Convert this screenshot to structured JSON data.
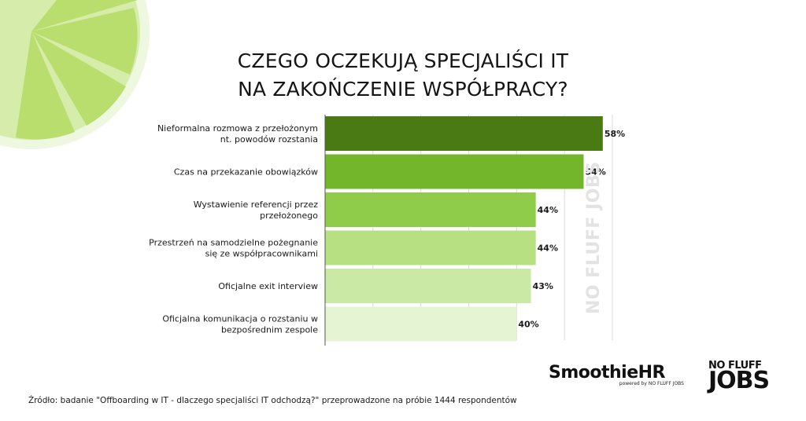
{
  "title": {
    "line1": "CZEGO OCZEKUJĄ SPECJALIŚCI IT",
    "line2": "NA ZAKOŃCZENIE WSPÓŁPRACY?"
  },
  "chart_data": {
    "type": "bar",
    "orientation": "horizontal",
    "categories": [
      [
        "Nieformalna rozmowa z przełożonym",
        "nt. powodów rozstania"
      ],
      [
        "Czas na przekazanie obowiązków"
      ],
      [
        "Wystawienie referencji przez",
        "przełożonego"
      ],
      [
        "Przestrzeń na samodzielne pożegnanie",
        "się ze współpracownikami"
      ],
      [
        "Oficjalne exit interview"
      ],
      [
        "Oficjalna komunikacja o rozstaniu w",
        "bezpośrednim zespole"
      ]
    ],
    "values": [
      58,
      54,
      44,
      44,
      43,
      40
    ],
    "value_labels": [
      "58%",
      "54%",
      "44%",
      "44%",
      "43%",
      "40%"
    ],
    "bar_colors": [
      "#4a7a14",
      "#73b62b",
      "#8fcc4a",
      "#b7e082",
      "#c9e9a4",
      "#e5f5d4"
    ],
    "xlim": [
      0,
      60
    ],
    "grid": true
  },
  "watermark": "NO FLUFF JOBS",
  "logos": {
    "smoothie_name": "SmoothieHR",
    "smoothie_sub": "powered by NO FLUFF JOBS",
    "nfj_top": "NO FLUFF",
    "nfj_bottom": "JOBS"
  },
  "source": "Źródło: badanie \"Offboarding w IT - dlaczego specjaliści IT odchodzą?\" przeprowadzone na próbie 1444 respondentów"
}
